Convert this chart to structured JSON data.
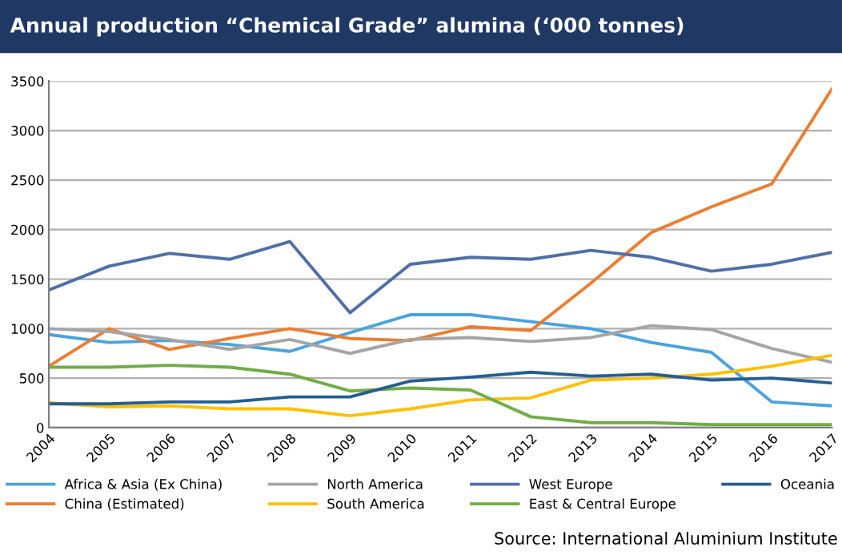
{
  "chart_data": {
    "type": "line",
    "title": "Annual production “Chemical Grade” alumina (‘000 tonnes)",
    "categories": [
      "2004",
      "2005",
      "2006",
      "2007",
      "2008",
      "2009",
      "2010",
      "2011",
      "2012",
      "2013",
      "2014",
      "2015",
      "2016",
      "2017"
    ],
    "series": [
      {
        "name": "Africa & Asia (Ex China)",
        "color": "#4aa3df",
        "values": [
          940,
          860,
          880,
          840,
          770,
          960,
          1140,
          1140,
          1070,
          1000,
          860,
          760,
          260,
          220
        ]
      },
      {
        "name": "China (Estimated)",
        "color": "#ed7d31",
        "values": [
          620,
          1000,
          790,
          900,
          1000,
          900,
          880,
          1020,
          980,
          1460,
          1970,
          2230,
          2460,
          3420
        ]
      },
      {
        "name": "North America",
        "color": "#a5a5a5",
        "values": [
          1000,
          970,
          890,
          790,
          890,
          750,
          890,
          910,
          870,
          910,
          1030,
          990,
          800,
          660
        ]
      },
      {
        "name": "South America",
        "color": "#ffc000",
        "values": [
          250,
          210,
          220,
          190,
          190,
          120,
          190,
          280,
          300,
          480,
          500,
          540,
          620,
          730
        ]
      },
      {
        "name": "West Europe",
        "color": "#4f6fa8",
        "values": [
          1390,
          1630,
          1760,
          1700,
          1880,
          1160,
          1650,
          1720,
          1700,
          1790,
          1720,
          1580,
          1650,
          1770
        ]
      },
      {
        "name": "East & Central Europe",
        "color": "#70ad47",
        "values": [
          610,
          610,
          630,
          610,
          540,
          370,
          400,
          380,
          110,
          50,
          50,
          30,
          30,
          30
        ]
      },
      {
        "name": "Oceania",
        "color": "#255e91",
        "values": [
          240,
          240,
          260,
          260,
          310,
          310,
          470,
          510,
          560,
          520,
          540,
          480,
          500,
          450
        ]
      }
    ],
    "ylim": [
      0,
      3500
    ],
    "yticks": [
      0,
      500,
      1000,
      1500,
      2000,
      2500,
      3000,
      3500
    ],
    "grid": "y",
    "legend": "bottom",
    "annotations": [
      "Source: International Aluminium Institute"
    ]
  }
}
